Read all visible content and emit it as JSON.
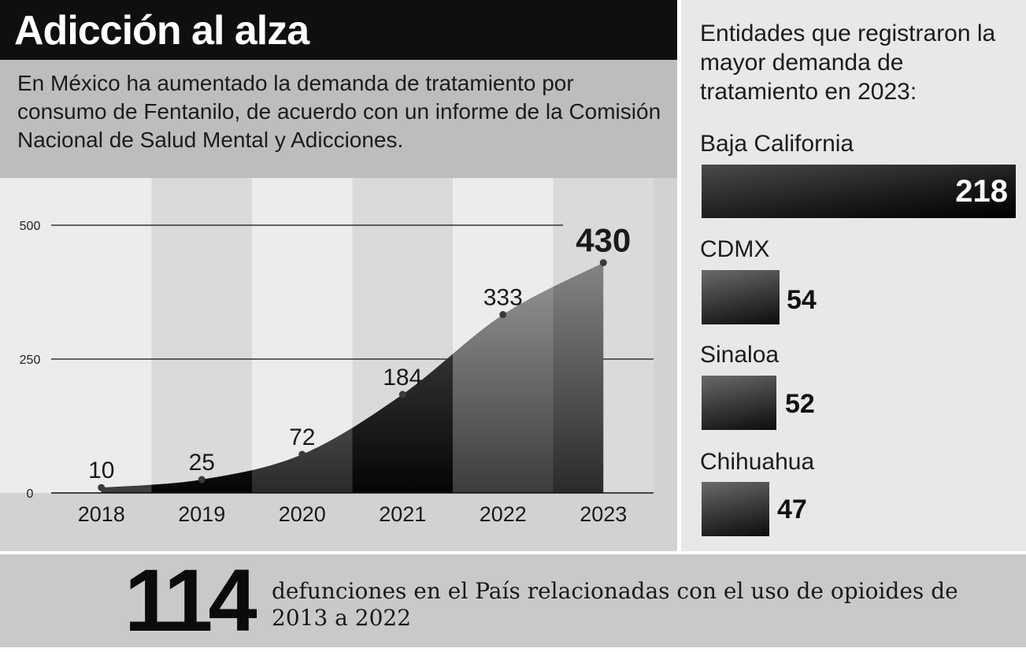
{
  "header": {
    "title": "Adicción al alza",
    "intro": "En México ha aumentado la demanda de tratamiento por consumo de Fentanilo, de acuerdo con un informe de la Comisión Nacional de Salud Mental y Adicciones."
  },
  "chart_data": {
    "type": "area",
    "categories": [
      "2018",
      "2019",
      "2020",
      "2021",
      "2022",
      "2023"
    ],
    "values": [
      10,
      25,
      72,
      184,
      333,
      430
    ],
    "value_labels": [
      "10",
      "25",
      "72",
      "184",
      "333",
      "430"
    ],
    "yticks": [
      "0",
      "250",
      "500"
    ],
    "ylim": [
      0,
      500
    ],
    "grid": "horizontal at 250 and 500",
    "highlight_last": true
  },
  "states": {
    "heading": "Entidades que registraron la mayor demanda de tratamiento en 2023:",
    "items": [
      {
        "name": "Baja California",
        "value": "218",
        "n": 218
      },
      {
        "name": "CDMX",
        "value": "54",
        "n": 54
      },
      {
        "name": "Sinaloa",
        "value": "52",
        "n": 52
      },
      {
        "name": "Chihuahua",
        "value": "47",
        "n": 47
      }
    ]
  },
  "footer": {
    "number": "114",
    "text": "defunciones en el País relacionadas con el uso de opioides de 2013 a 2022"
  }
}
